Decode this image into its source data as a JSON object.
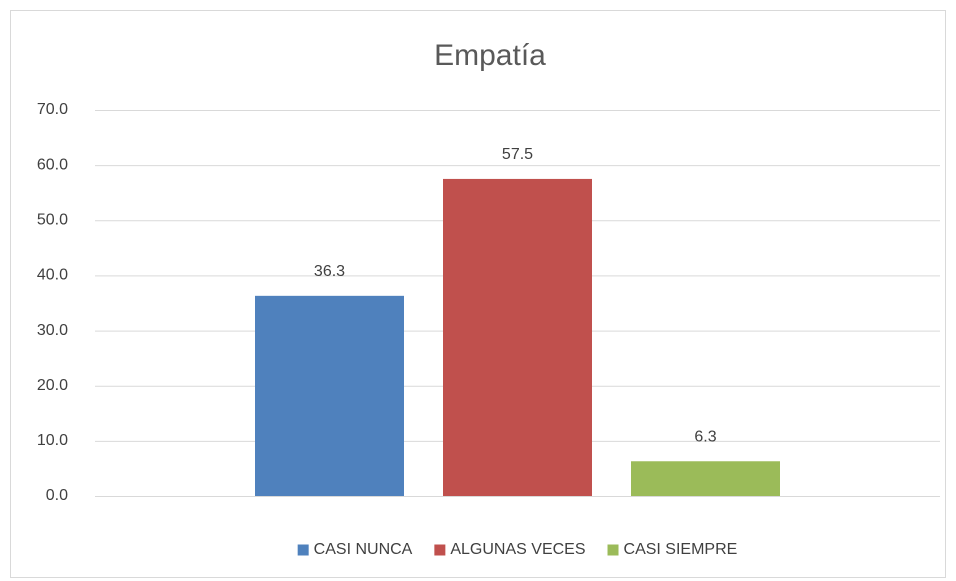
{
  "chart_data": {
    "type": "bar",
    "title": "Empatía",
    "categories": [
      null
    ],
    "series": [
      {
        "name": "CASI NUNCA",
        "color": "#4f81bd",
        "values": [
          36.3
        ]
      },
      {
        "name": "ALGUNAS VECES",
        "color": "#c0504d",
        "values": [
          57.5
        ]
      },
      {
        "name": "CASI SIEMPRE",
        "color": "#9bbb59",
        "values": [
          6.3
        ]
      }
    ],
    "ylim": [
      0,
      70
    ],
    "yticks": [
      {
        "value": 0,
        "label": "0.0"
      },
      {
        "value": 10,
        "label": "10.0"
      },
      {
        "value": 20,
        "label": "20.0"
      },
      {
        "value": 30,
        "label": "30.0"
      },
      {
        "value": 40,
        "label": "40.0"
      },
      {
        "value": 50,
        "label": "50.0"
      },
      {
        "value": 60,
        "label": "60.0"
      },
      {
        "value": 70,
        "label": "70.0"
      }
    ],
    "grid": true,
    "legend": "bottom"
  }
}
